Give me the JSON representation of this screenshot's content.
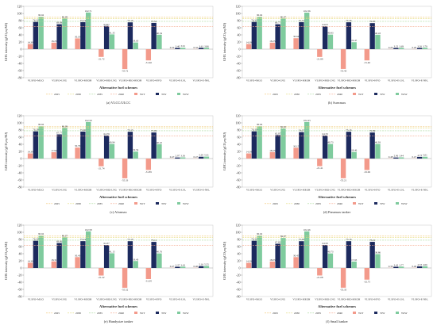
{
  "chart_data": [
    {
      "type": "bar",
      "caption": "(a) VLCC/ULCC",
      "xlabel": "Alternative fuel schemes",
      "ylabel": "GHG intensity (gCO₂eq/MJ)",
      "ylim": [
        -80,
        120
      ],
      "yticks": [
        -80,
        -60,
        -40,
        -20,
        0,
        20,
        40,
        60,
        80,
        100,
        120
      ],
      "grid": false,
      "legend": "bottom",
      "categories": [
        "VLSFO+MGO",
        "VLSFO+LNG",
        "VLSFO+MEOH",
        "VLSFO+BIO-LNG",
        "VLSFO+BIO-MEOH",
        "VLSFO+HVO",
        "VLSFO+E-LH₂",
        "VLSFO+E-NH₃"
      ],
      "series": [
        {
          "name": "WtT",
          "color": "#f39a8b",
          "values": [
            14.39,
            18.25,
            30.19,
            -21.72,
            -55.72,
            -31.46,
            0.32,
            0.32
          ]
        },
        {
          "name": "TtW",
          "color": "#1c2a5e",
          "values": [
            76.32,
            69.88,
            75.74,
            64.97,
            75.16,
            73.52,
            3.4,
            3.61
          ]
        },
        {
          "name": "WtW",
          "color": "#7fcb9e",
          "values": [
            90.62,
            86.09,
            102.71,
            41.35,
            18.63,
            40.54,
            3.91,
            3.86
          ]
        }
      ],
      "reference_lines": [
        {
          "name": "2025",
          "value": 89.34,
          "color": "#f2c46d"
        },
        {
          "name": "2030",
          "value": 85.69,
          "color": "#e3dc7a"
        },
        {
          "name": "2035",
          "value": 77.94,
          "color": "#a8d99a"
        },
        {
          "name": "2040",
          "value": 62.9,
          "color": "#f5a98c"
        }
      ]
    },
    {
      "type": "bar",
      "caption": "(b) Suezmax",
      "xlabel": "Alternative fuel schemes",
      "ylabel": "GHG intensity (gCO₂eq/MJ)",
      "ylim": [
        -80,
        120
      ],
      "yticks": [
        -80,
        -60,
        -40,
        -20,
        0,
        20,
        40,
        60,
        80,
        100,
        120
      ],
      "grid": false,
      "legend": "bottom",
      "categories": [
        "VLSFO+MGO",
        "VLSFO+LNG",
        "VLSFO+MEOH",
        "VLSFO+BIO-LNG",
        "VLSFO+BIO-MEOH",
        "VLSFO+HVO",
        "VLSFO+E-LH₂",
        "VLSFO+E-NH₃"
      ],
      "series": [
        {
          "name": "WtT",
          "color": "#f39a8b",
          "values": [
            14.39,
            18.25,
            30.64,
            -21.89,
            -55.43,
            -31.46,
            0.29,
            0.29
          ]
        },
        {
          "name": "TtW",
          "color": "#1c2a5e",
          "values": [
            76.32,
            69.77,
            75.72,
            64.03,
            75.36,
            72.95,
            3.22,
            3.26
          ]
        },
        {
          "name": "WtW",
          "color": "#7fcb9e",
          "values": [
            90.62,
            86.07,
            102.36,
            40.83,
            19.47,
            40.43,
            3.69,
            3.79
          ]
        }
      ],
      "reference_lines": [
        {
          "name": "2025",
          "value": 89.34,
          "color": "#f2c46d"
        },
        {
          "name": "2030",
          "value": 85.69,
          "color": "#e3dc7a"
        },
        {
          "name": "2035",
          "value": 77.94,
          "color": "#a8d99a"
        },
        {
          "name": "2040",
          "value": 62.9,
          "color": "#f5a98c"
        }
      ]
    },
    {
      "type": "bar",
      "caption": "(c) Aframax",
      "xlabel": "Alternative fuel schemes",
      "ylabel": "GHG intensity (gCO₂eq/MJ)",
      "ylim": [
        -80,
        120
      ],
      "yticks": [
        -80,
        -60,
        -40,
        -20,
        0,
        20,
        40,
        60,
        80,
        100,
        120
      ],
      "grid": false,
      "legend": "bottom",
      "categories": [
        "VLSFO+MGO",
        "VLSFO+LNG",
        "VLSFO+MEOH",
        "VLSFO+BIO-LNG",
        "VLSFO+BIO-MEOH",
        "VLSFO+HVO",
        "VLSFO+E-LH₂",
        "VLSFO+E-NH₃"
      ],
      "series": [
        {
          "name": "WtT",
          "color": "#f39a8b",
          "values": [
            14.39,
            17.94,
            30.79,
            -21.74,
            -55.33,
            -31.85,
            0.47,
            0.47
          ]
        },
        {
          "name": "TtW",
          "color": "#1c2a5e",
          "values": [
            76.28,
            67.77,
            75.6,
            64.79,
            75.13,
            73.09,
            2.97,
            5.05
          ]
        },
        {
          "name": "WtW",
          "color": "#7fcb9e",
          "values": [
            90.62,
            86.09,
            102.59,
            40.94,
            19.54,
            40.22,
            3.36,
            5.41
          ]
        }
      ],
      "reference_lines": [
        {
          "name": "2025",
          "value": 89.34,
          "color": "#f2c46d"
        },
        {
          "name": "2030",
          "value": 85.69,
          "color": "#e3dc7a"
        },
        {
          "name": "2035",
          "value": 77.94,
          "color": "#a8d99a"
        },
        {
          "name": "2040",
          "value": 62.9,
          "color": "#f5a98c"
        }
      ]
    },
    {
      "type": "bar",
      "caption": "(d) Panamax tanker",
      "xlabel": "Alternative fuel schemes",
      "ylabel": "GHG intensity (gCO₂eq/MJ)",
      "ylim": [
        -80,
        120
      ],
      "yticks": [
        -80,
        -60,
        -40,
        -20,
        0,
        20,
        40,
        60,
        80,
        100,
        120
      ],
      "grid": false,
      "legend": "bottom",
      "categories": [
        "VLSFO+MGO",
        "VLSFO+LNG",
        "VLSFO+MEOH",
        "VLSFO+BIO-LNG",
        "VLSFO+BIO-MEOH",
        "VLSFO+HVO",
        "VLSFO+E-LH₂",
        "VLSFO+E-NH₃"
      ],
      "series": [
        {
          "name": "WtT",
          "color": "#f39a8b",
          "values": [
            14.39,
            18.25,
            30.15,
            -21.41,
            -55.21,
            -32.06,
            0.48,
            0.47
          ]
        },
        {
          "name": "TtW",
          "color": "#1c2a5e",
          "values": [
            76.3,
            65.97,
            74.07,
            64.7,
            75.16,
            72.99,
            2.96,
            4.73
          ]
        },
        {
          "name": "WtW",
          "color": "#7fcb9e",
          "values": [
            90.62,
            84.02,
            102.43,
            40.73,
            18.46,
            40.93,
            3.44,
            5.01
          ]
        }
      ],
      "reference_lines": [
        {
          "name": "2025",
          "value": 89.34,
          "color": "#f2c46d"
        },
        {
          "name": "2030",
          "value": 85.69,
          "color": "#e3dc7a"
        },
        {
          "name": "2035",
          "value": 77.94,
          "color": "#a8d99a"
        },
        {
          "name": "2040",
          "value": 62.9,
          "color": "#f5a98c"
        }
      ]
    },
    {
      "type": "bar",
      "caption": "(e) Handysize tanker",
      "xlabel": "Alternative fuel schemes",
      "ylabel": "GHG intensity (gCO₂eq/MJ)",
      "ylim": [
        -80,
        120
      ],
      "yticks": [
        -80,
        -60,
        -40,
        -20,
        0,
        20,
        40,
        60,
        80,
        100,
        120
      ],
      "grid": false,
      "legend": "bottom",
      "categories": [
        "VLSFO+MGO",
        "VLSFO+LNG",
        "VLSFO+MEOH",
        "VLSFO+BIO-LNG",
        "VLSFO+BIO-MEOH",
        "VLSFO+HVO",
        "VLSFO+E-LH₂",
        "VLSFO+E-NH₃"
      ],
      "series": [
        {
          "name": "WtT",
          "color": "#f39a8b",
          "values": [
            14.39,
            18.31,
            30.43,
            -21.22,
            -55.52,
            -31.05,
            0.47,
            0.46
          ]
        },
        {
          "name": "TtW",
          "color": "#1c2a5e",
          "values": [
            76.3,
            69.86,
            75.24,
            64.37,
            75.1,
            73.11,
            3.37,
            5.16
          ]
        },
        {
          "name": "WtW",
          "color": "#7fcb9e",
          "values": [
            90.62,
            86.07,
            102.58,
            41.15,
            19.43,
            40.76,
            3.63,
            5.55
          ]
        }
      ],
      "reference_lines": [
        {
          "name": "2025",
          "value": 89.34,
          "color": "#f2c46d"
        },
        {
          "name": "2030",
          "value": 85.69,
          "color": "#e3dc7a"
        },
        {
          "name": "2035",
          "value": 77.94,
          "color": "#a8d99a"
        },
        {
          "name": "2040",
          "value": 62.9,
          "color": "#f5a98c"
        }
      ]
    },
    {
      "type": "bar",
      "caption": "(f) Small tanker",
      "xlabel": "Alternative fuel schemes",
      "ylabel": "GHG intensity (gCO₂eq/MJ)",
      "ylim": [
        -80,
        120
      ],
      "yticks": [
        -80,
        -60,
        -40,
        -20,
        0,
        20,
        40,
        60,
        80,
        100,
        120
      ],
      "grid": false,
      "legend": "bottom",
      "categories": [
        "VLSFO+MGO",
        "VLSFO+LNG",
        "VLSFO+MEOH",
        "VLSFO+BIO-LNG",
        "VLSFO+BIO-MEOH",
        "VLSFO+HVO",
        "VLSFO+E-LH₂",
        "VLSFO+E-NH₃"
      ],
      "series": [
        {
          "name": "WtT",
          "color": "#f39a8b",
          "values": [
            14.39,
            18.03,
            30.45,
            -21.08,
            -55.35,
            -32.75,
            0.36,
            0.46
          ]
        },
        {
          "name": "TtW",
          "color": "#1c2a5e",
          "values": [
            76.32,
            67.82,
            75.09,
            64.5,
            75.16,
            73.21,
            3.42,
            4.33
          ]
        },
        {
          "name": "WtW",
          "color": "#7fcb9e",
          "values": [
            90.62,
            84.07,
            102.46,
            40.73,
            17.93,
            38.86,
            3.77,
            4.66
          ]
        }
      ],
      "reference_lines": [
        {
          "name": "2025",
          "value": 89.34,
          "color": "#f2c46d"
        },
        {
          "name": "2030",
          "value": 85.69,
          "color": "#e3dc7a"
        },
        {
          "name": "2035",
          "value": 77.94,
          "color": "#a8d99a"
        },
        {
          "name": "2040",
          "value": 62.9,
          "color": "#f5a98c"
        }
      ]
    }
  ]
}
